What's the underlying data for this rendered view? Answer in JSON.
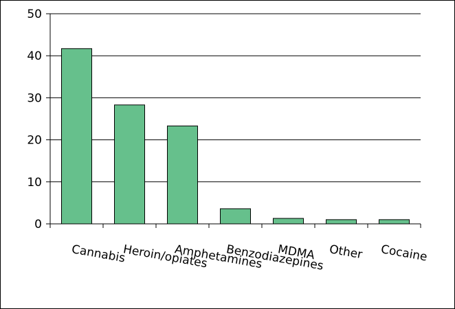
{
  "chart_data": {
    "type": "bar",
    "categories": [
      "Cannabis",
      "Heroin/opiates",
      "Amphetamines",
      "Benzodiazepines",
      "MDMA",
      "Other",
      "Cocaine"
    ],
    "values": [
      41.7,
      28.3,
      23.3,
      3.6,
      1.3,
      1.0,
      1.0
    ],
    "title": "",
    "xlabel": "",
    "ylabel": "",
    "ylim": [
      0,
      50
    ],
    "yticks": [
      "0",
      "10",
      "20",
      "30",
      "40",
      "50"
    ],
    "ytick_values": [
      0,
      10,
      20,
      30,
      40,
      50
    ],
    "grid": true,
    "bar_color": "#66c08c",
    "grid_color": "#000000"
  }
}
